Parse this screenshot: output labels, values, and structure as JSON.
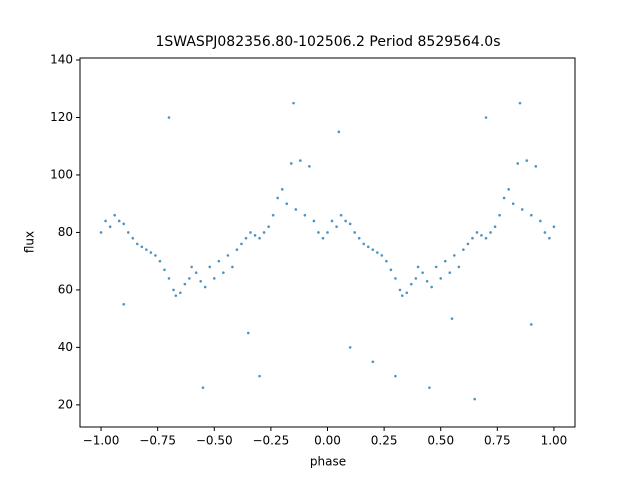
{
  "chart_data": {
    "type": "scatter",
    "title": "1SWASPJ082356.80-102506.2 Period 8529564.0s",
    "x_label": "phase",
    "y_label": "flux",
    "color": "#1f77b4",
    "xlim": [
      -1.093,
      1.093
    ],
    "ylim": [
      12.3,
      140.7
    ],
    "xticks": [
      {
        "value": -1,
        "label": "−1.00"
      },
      {
        "value": -0.75,
        "label": "−0.75"
      },
      {
        "value": -0.5,
        "label": "−0.50"
      },
      {
        "value": -0.25,
        "label": "−0.25"
      },
      {
        "value": 0,
        "label": "0.00"
      },
      {
        "value": 0.25,
        "label": "0.25"
      },
      {
        "value": 0.5,
        "label": "0.50"
      },
      {
        "value": 0.75,
        "label": "0.75"
      },
      {
        "value": 1,
        "label": "1.00"
      }
    ],
    "yticks": [
      20,
      40,
      60,
      80,
      100,
      120,
      140
    ],
    "x": [
      0,
      0.02,
      0.04,
      0.06,
      0.08,
      0.1,
      0.12,
      0.14,
      0.16,
      0.18,
      0.2,
      0.22,
      0.24,
      0.26,
      0.28,
      0.3,
      0.32,
      0.33,
      0.35,
      0.37,
      0.39,
      0.4,
      0.42,
      0.44,
      0.46,
      0.48,
      0.5,
      0.52,
      0.54,
      0.56,
      0.58,
      0.6,
      0.62,
      0.64,
      0.66,
      0.68,
      0.7,
      0.72,
      0.74,
      0.76,
      0.78,
      0.8,
      0.82,
      0.84,
      0.86,
      0.88,
      0.9,
      0.92,
      0.94,
      0.96,
      0.98,
      1,
      -1,
      -0.98,
      -0.96,
      -0.94,
      -0.92,
      -0.9,
      -0.88,
      -0.86,
      -0.84,
      -0.82,
      -0.8,
      -0.78,
      -0.76,
      -0.74,
      -0.72,
      -0.7,
      -0.68,
      -0.67,
      -0.65,
      -0.63,
      -0.61,
      -0.6,
      -0.58,
      -0.56,
      -0.54,
      -0.52,
      -0.5,
      -0.48,
      -0.46,
      -0.44,
      -0.42,
      -0.4,
      -0.38,
      -0.36,
      -0.34,
      -0.32,
      -0.3,
      -0.28,
      -0.26,
      -0.24,
      -0.22,
      -0.2,
      -0.18,
      -0.16,
      -0.14,
      -0.12,
      -0.1,
      -0.08,
      -0.06,
      -0.04,
      -0.02,
      0.1,
      0.3,
      0.45,
      0.65,
      0.7,
      0.85,
      0.55,
      0.2,
      0.9,
      0.05,
      -0.9,
      -0.7,
      -0.55,
      -0.3,
      -0.15,
      -0.35
    ],
    "values": [
      80,
      84,
      82,
      86,
      84,
      83,
      80,
      78,
      76,
      75,
      74,
      73,
      72,
      70,
      67,
      64,
      60,
      58,
      59,
      62,
      64,
      68,
      66,
      63,
      61,
      68,
      64,
      70,
      66,
      72,
      68,
      74,
      76,
      78,
      80,
      79,
      78,
      80,
      82,
      86,
      92,
      95,
      90,
      104,
      88,
      105,
      86,
      103,
      84,
      80,
      78,
      82,
      80,
      84,
      82,
      86,
      84,
      83,
      80,
      78,
      76,
      75,
      74,
      73,
      72,
      70,
      67,
      64,
      60,
      58,
      59,
      62,
      64,
      68,
      66,
      63,
      61,
      68,
      64,
      70,
      66,
      72,
      68,
      74,
      76,
      78,
      80,
      79,
      78,
      80,
      82,
      86,
      92,
      95,
      90,
      104,
      88,
      105,
      86,
      103,
      84,
      80,
      78,
      40,
      30,
      26,
      22,
      120,
      125,
      50,
      35,
      48,
      115,
      55,
      120,
      26,
      30,
      125,
      45
    ]
  }
}
